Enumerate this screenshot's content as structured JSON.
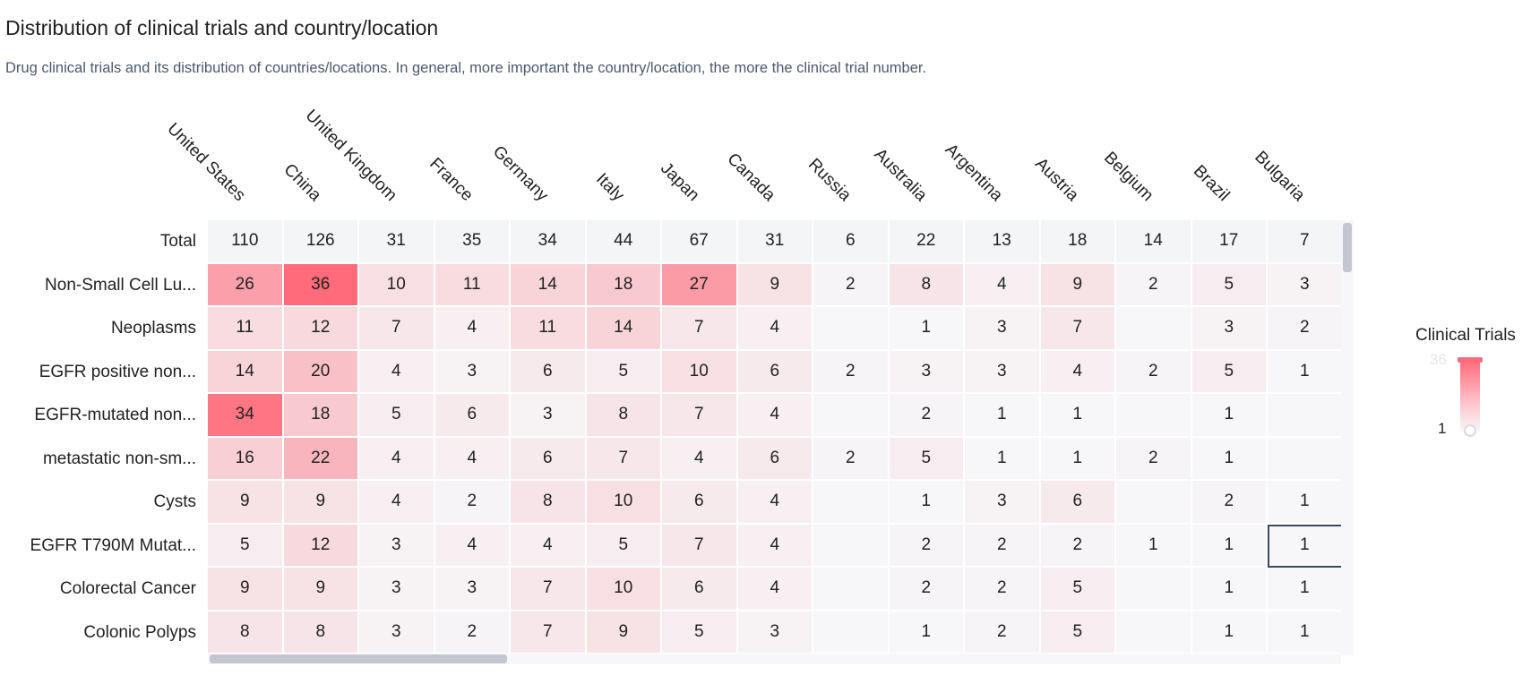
{
  "header": {
    "title": "Distribution of clinical trials and country/location",
    "subtitle": "Drug clinical trials and its distribution of countries/locations. In general, more important the country/location, the more the clinical trial number."
  },
  "legend": {
    "title": "Clinical Trials",
    "max_label": "36",
    "min_label": "1",
    "color_high": "#ff6b7a",
    "color_low": "#f7f7f9"
  },
  "chart_data": {
    "type": "heatmap",
    "title": "Distribution of clinical trials and country/location",
    "columns": [
      "United States",
      "China",
      "United Kingdom",
      "France",
      "Germany",
      "Italy",
      "Japan",
      "Canada",
      "Russia",
      "Australia",
      "Argentina",
      "Austria",
      "Belgium",
      "Brazil",
      "Bulgaria"
    ],
    "total_label": "Total",
    "totals": [
      110,
      126,
      31,
      35,
      34,
      44,
      67,
      31,
      6,
      22,
      13,
      18,
      14,
      17,
      7
    ],
    "rows": [
      {
        "label": "Non-Small Cell Lu...",
        "values": [
          26,
          36,
          10,
          11,
          14,
          18,
          27,
          9,
          2,
          8,
          4,
          9,
          2,
          5,
          3
        ]
      },
      {
        "label": "Neoplasms",
        "values": [
          11,
          12,
          7,
          4,
          11,
          14,
          7,
          4,
          null,
          1,
          3,
          7,
          null,
          3,
          2
        ]
      },
      {
        "label": "EGFR positive non...",
        "values": [
          14,
          20,
          4,
          3,
          6,
          5,
          10,
          6,
          2,
          3,
          3,
          4,
          2,
          5,
          1
        ]
      },
      {
        "label": "EGFR-mutated non...",
        "values": [
          34,
          18,
          5,
          6,
          3,
          8,
          7,
          4,
          null,
          2,
          1,
          1,
          null,
          1,
          null
        ]
      },
      {
        "label": "metastatic non-sm...",
        "values": [
          16,
          22,
          4,
          4,
          6,
          7,
          4,
          6,
          2,
          5,
          1,
          1,
          2,
          1,
          null
        ]
      },
      {
        "label": "Cysts",
        "values": [
          9,
          9,
          4,
          2,
          8,
          10,
          6,
          4,
          null,
          1,
          3,
          6,
          null,
          2,
          1
        ]
      },
      {
        "label": "EGFR T790M Mutat...",
        "values": [
          5,
          12,
          3,
          4,
          4,
          5,
          7,
          4,
          null,
          2,
          2,
          2,
          1,
          1,
          1
        ]
      },
      {
        "label": "Colorectal Cancer",
        "values": [
          9,
          9,
          3,
          3,
          7,
          10,
          6,
          4,
          null,
          2,
          2,
          5,
          null,
          1,
          1
        ]
      },
      {
        "label": "Colonic Polyps",
        "values": [
          8,
          8,
          3,
          2,
          7,
          9,
          5,
          3,
          null,
          1,
          2,
          5,
          null,
          1,
          1
        ]
      }
    ],
    "value_range": [
      1,
      36
    ],
    "selected_cell": {
      "row": "EGFR T790M Mutat...",
      "column": "Bulgaria"
    }
  }
}
